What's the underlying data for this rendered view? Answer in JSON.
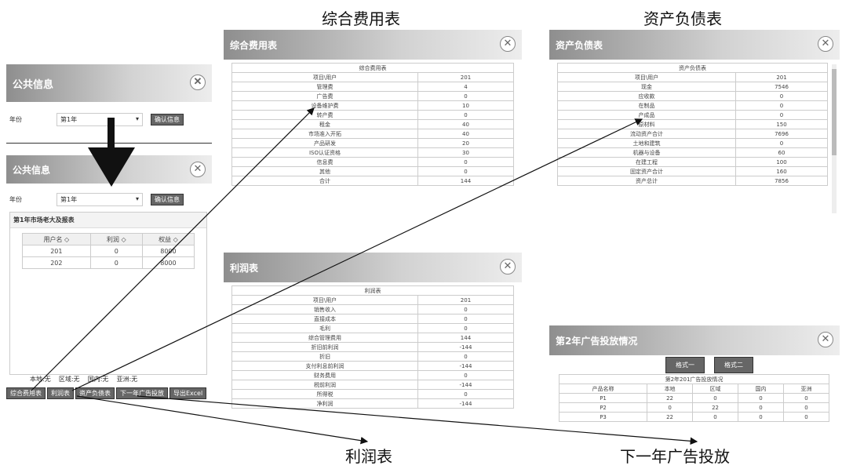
{
  "captions": {
    "comprehensive": "综合费用表",
    "balance": "资产负债表",
    "profit": "利润表",
    "next_ad": "下一年广告投放"
  },
  "public_info": {
    "title": "公共信息",
    "year_label": "年份",
    "year_value": "第1年",
    "confirm": "确认信息",
    "market_title": "第1年市场老大及报表",
    "headers": [
      "用户名 ◇",
      "利润 ◇",
      "权益 ◇"
    ],
    "rows": [
      [
        "201",
        "0",
        "8000"
      ],
      [
        "202",
        "0",
        "8000"
      ]
    ],
    "market_status": "本地:无    区域:无    国内:无    亚洲:无",
    "buttons": [
      "综合费用表",
      "利润表",
      "资产负债表",
      "下一年广告投放",
      "导出Excel"
    ]
  },
  "comprehensive": {
    "title": "综合费用表",
    "table_title": "综合费用表",
    "rows": [
      [
        "项目\\用户",
        "201"
      ],
      [
        "管理费",
        "4"
      ],
      [
        "广告费",
        "0"
      ],
      [
        "设备维护费",
        "10"
      ],
      [
        "转产费",
        "0"
      ],
      [
        "租金",
        "40"
      ],
      [
        "市场准入开拓",
        "40"
      ],
      [
        "产品研发",
        "20"
      ],
      [
        "ISO认证资格",
        "30"
      ],
      [
        "信息费",
        "0"
      ],
      [
        "其他",
        "0"
      ],
      [
        "合计",
        "144"
      ]
    ]
  },
  "balance": {
    "title": "资产负债表",
    "table_title": "资产负债表",
    "rows": [
      [
        "项目\\用户",
        "201"
      ],
      [
        "现金",
        "7546"
      ],
      [
        "应收款",
        "0"
      ],
      [
        "在制品",
        "0"
      ],
      [
        "产成品",
        "0"
      ],
      [
        "原材料",
        "150"
      ],
      [
        "流动资产合计",
        "7696"
      ],
      [
        "土地和建筑",
        "0"
      ],
      [
        "机器与设备",
        "60"
      ],
      [
        "在建工程",
        "100"
      ],
      [
        "固定资产合计",
        "160"
      ],
      [
        "资产总计",
        "7856"
      ]
    ]
  },
  "profit": {
    "title": "利润表",
    "table_title": "利润表",
    "rows": [
      [
        "项目\\用户",
        "201"
      ],
      [
        "销售收入",
        "0"
      ],
      [
        "直接成本",
        "0"
      ],
      [
        "毛利",
        "0"
      ],
      [
        "综合管理费用",
        "144"
      ],
      [
        "折旧前利润",
        "-144"
      ],
      [
        "折旧",
        "0"
      ],
      [
        "支付利息前利润",
        "-144"
      ],
      [
        "财务费用",
        "0"
      ],
      [
        "税前利润",
        "-144"
      ],
      [
        "所得税",
        "0"
      ],
      [
        "净利润",
        "-144"
      ]
    ]
  },
  "ad": {
    "title": "第2年广告投放情况",
    "tabs": [
      "格式一",
      "格式二"
    ],
    "table_title": "第2年201广告投放情况",
    "headers": [
      "产品名称",
      "本地",
      "区域",
      "国内",
      "亚洲"
    ],
    "rows": [
      [
        "P1",
        "22",
        "0",
        "0",
        "0"
      ],
      [
        "P2",
        "0",
        "22",
        "0",
        "0"
      ],
      [
        "P3",
        "22",
        "0",
        "0",
        "0"
      ]
    ]
  }
}
